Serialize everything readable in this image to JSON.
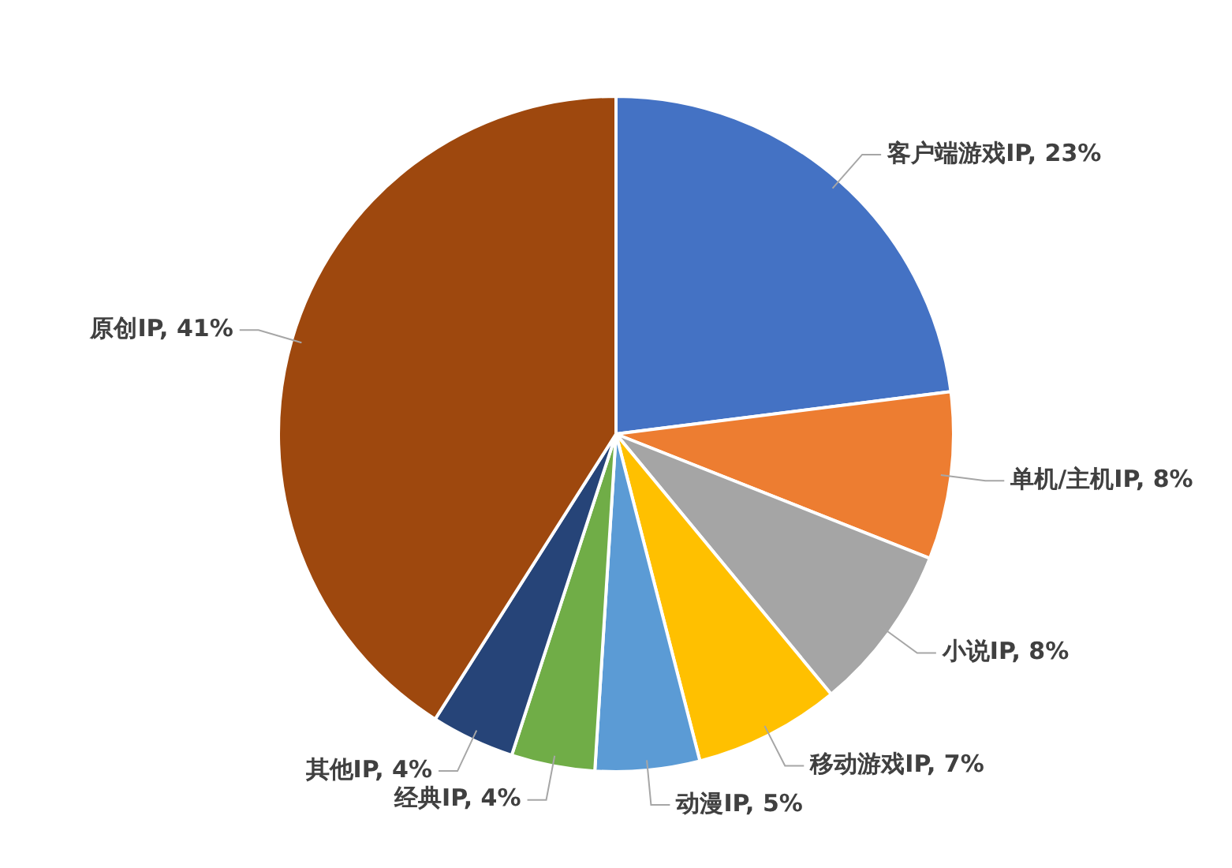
{
  "chart_data": {
    "type": "pie",
    "categories": [
      "客户端游戏IP",
      "单机/主机IP",
      "小说IP",
      "移动游戏IP",
      "动漫IP",
      "经典IP",
      "其他IP",
      "原创IP"
    ],
    "values": [
      23,
      8,
      8,
      7,
      5,
      4,
      4,
      41
    ],
    "colors": [
      "#4472c4",
      "#ed7d31",
      "#a5a5a5",
      "#ffc000",
      "#5b9bd5",
      "#70ad47",
      "#264478",
      "#9e480e"
    ],
    "value_labels": [
      "23%",
      "8%",
      "8%",
      "7%",
      "5%",
      "4%",
      "4%",
      "41%"
    ],
    "legend": false
  }
}
